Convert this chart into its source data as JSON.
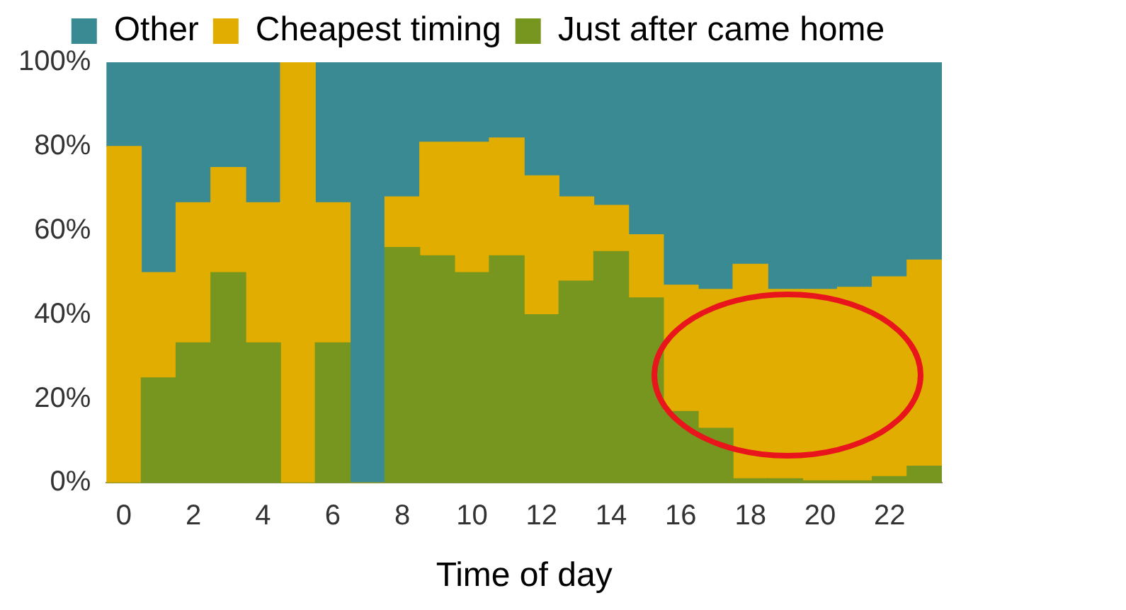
{
  "chart_data": {
    "type": "bar",
    "stacked": true,
    "xlabel": "Time of day",
    "categories": [
      "0",
      null,
      "2",
      null,
      "4",
      null,
      "6",
      null,
      "8",
      null,
      "10",
      null,
      "12",
      null,
      "14",
      null,
      "16",
      null,
      "18",
      null,
      "20",
      null,
      "22",
      null
    ],
    "series": [
      {
        "name": "Just after came home",
        "color": "#77961f",
        "values": [
          0,
          25,
          33.3,
          50,
          33.3,
          0,
          33.3,
          0,
          56,
          54,
          50,
          54,
          40,
          48,
          55,
          44,
          17,
          13,
          1,
          1,
          0.5,
          0.5,
          1.5,
          4
        ]
      },
      {
        "name": "Cheapest timing",
        "color": "#e0ad00",
        "values": [
          80,
          25,
          33.3,
          25,
          33.3,
          100,
          33.3,
          0,
          12,
          27,
          31,
          28,
          33,
          20,
          11,
          15,
          30,
          33,
          51,
          45,
          45.5,
          46,
          47.5,
          49
        ]
      },
      {
        "name": "Other",
        "color": "#3a8a94",
        "values": [
          20,
          50,
          33.4,
          25,
          33.4,
          0,
          33.4,
          100,
          32,
          19,
          19,
          18,
          27,
          32,
          34,
          41,
          53,
          54,
          48,
          54,
          54,
          53.5,
          51,
          47
        ]
      }
    ],
    "ylim": [
      0,
      100
    ],
    "yticks": [
      {
        "value": 0,
        "label": "0%"
      },
      {
        "value": 20,
        "label": "20%"
      },
      {
        "value": 40,
        "label": "40%"
      },
      {
        "value": 60,
        "label": "60%"
      },
      {
        "value": 80,
        "label": "80%"
      },
      {
        "value": 100,
        "label": "100%"
      }
    ],
    "grid": false,
    "legend": "top"
  }
}
